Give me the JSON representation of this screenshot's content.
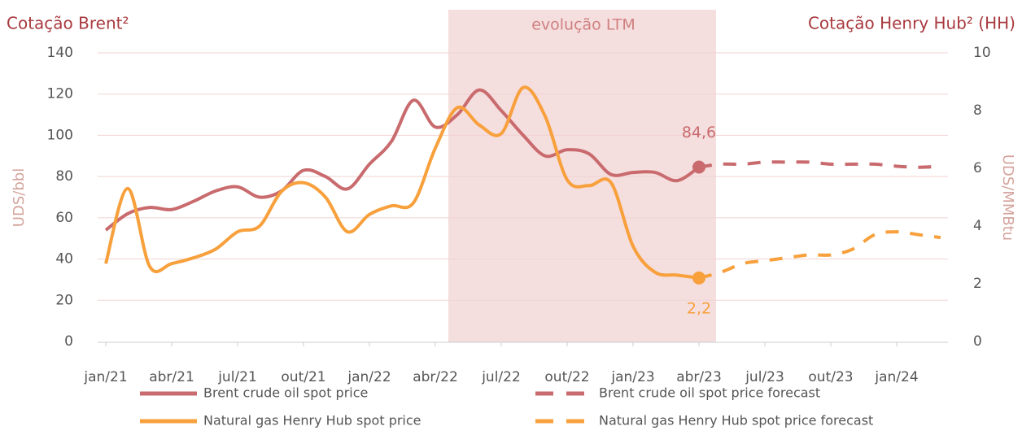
{
  "chart_data": {
    "type": "line",
    "title_left": "Cotação Brent²",
    "title_right": "Cotação Henry Hub² (HH)",
    "highlight_label": "evolução LTM",
    "ylabel": "UDS/bbl",
    "y2label": "UDS/MMBtu",
    "categories": [
      "jan/21",
      null,
      null,
      "abr/21",
      null,
      null,
      "jul/21",
      null,
      null,
      "out/21",
      null,
      null,
      "jan/22",
      null,
      null,
      "abr/22",
      null,
      null,
      "jul/22",
      null,
      null,
      "out/22",
      null,
      null,
      "jan/23",
      null,
      null,
      "abr/23",
      null,
      null,
      "jul/23",
      null,
      null,
      "out/23",
      null,
      null,
      "jan/24",
      null,
      null
    ],
    "ylim": [
      0,
      140
    ],
    "yticks": [
      0,
      20,
      40,
      60,
      80,
      100,
      120,
      140
    ],
    "y2lim": [
      0,
      10
    ],
    "y2ticks": [
      0,
      2,
      4,
      6,
      8,
      10
    ],
    "grid": true,
    "series": [
      {
        "name": "Brent crude oil spot price",
        "color": "#c96b6e",
        "style": "solid",
        "axis": "y",
        "values": [
          54,
          62,
          65,
          64,
          68,
          73,
          75,
          70,
          73,
          83,
          80,
          74,
          86,
          97,
          117,
          104,
          110,
          122,
          112,
          100,
          90,
          93,
          91,
          81,
          82,
          82,
          78,
          84.6,
          null,
          null,
          null,
          null,
          null,
          null,
          null,
          null,
          null,
          null,
          null
        ],
        "value_labels": [
          null,
          null,
          null,
          null,
          null,
          null,
          null,
          null,
          null,
          null,
          null,
          null,
          null,
          null,
          null,
          null,
          null,
          null,
          null,
          null,
          null,
          null,
          null,
          null,
          null,
          null,
          null,
          "84,6",
          null,
          null,
          null,
          null,
          null,
          null,
          null,
          null,
          null,
          null,
          null
        ]
      },
      {
        "name": "Brent crude oil spot price forecast",
        "color": "#c96b6e",
        "style": "dashed",
        "axis": "y",
        "values": [
          null,
          null,
          null,
          null,
          null,
          null,
          null,
          null,
          null,
          null,
          null,
          null,
          null,
          null,
          null,
          null,
          null,
          null,
          null,
          null,
          null,
          null,
          null,
          null,
          null,
          null,
          null,
          84.6,
          86,
          86,
          87,
          87,
          87,
          86,
          86,
          86,
          85,
          84.5,
          85
        ]
      },
      {
        "name": "Natural gas Henry Hub spot price",
        "color": "#f7a03c",
        "style": "solid",
        "axis": "y2",
        "values": [
          2.7,
          5.3,
          2.6,
          2.7,
          2.9,
          3.2,
          3.8,
          4.0,
          5.2,
          5.5,
          5.0,
          3.8,
          4.4,
          4.7,
          4.8,
          6.7,
          8.1,
          7.5,
          7.2,
          8.8,
          7.8,
          5.6,
          5.4,
          5.5,
          3.3,
          2.4,
          2.3,
          2.2,
          null,
          null,
          null,
          null,
          null,
          null,
          null,
          null,
          null,
          null,
          null
        ],
        "value_labels": [
          null,
          null,
          null,
          null,
          null,
          null,
          null,
          null,
          null,
          null,
          null,
          null,
          null,
          null,
          null,
          null,
          null,
          null,
          null,
          null,
          null,
          null,
          null,
          null,
          null,
          null,
          null,
          "2,2",
          null,
          null,
          null,
          null,
          null,
          null,
          null,
          null,
          null,
          null,
          null
        ]
      },
      {
        "name": "Natural gas Henry Hub spot price forecast",
        "color": "#f7a03c",
        "style": "dashed",
        "axis": "y2",
        "values": [
          null,
          null,
          null,
          null,
          null,
          null,
          null,
          null,
          null,
          null,
          null,
          null,
          null,
          null,
          null,
          null,
          null,
          null,
          null,
          null,
          null,
          null,
          null,
          null,
          null,
          null,
          null,
          2.2,
          2.4,
          2.7,
          2.8,
          2.9,
          3.0,
          3.0,
          3.2,
          3.7,
          3.8,
          3.7,
          3.6
        ]
      }
    ]
  }
}
